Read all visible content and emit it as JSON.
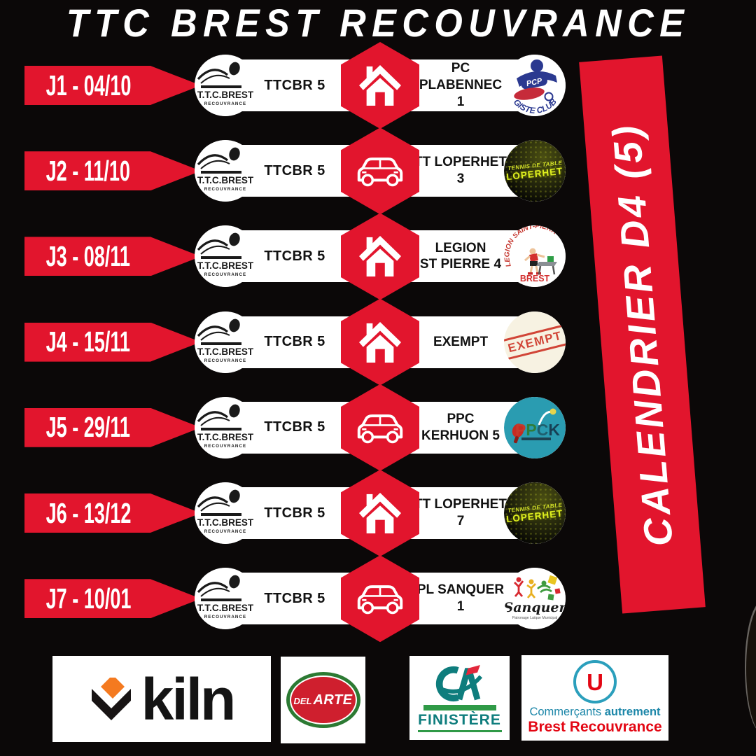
{
  "title": "TTC BREST RECOUVRANCE",
  "banner": {
    "label": "CALENDRIER D4 (5)"
  },
  "rows": [
    {
      "day": "J1 - 04/10",
      "venue": "home",
      "venue_icon": "house-icon",
      "team": "TTCBR 5",
      "opponent_lines": [
        "PC PLABENNEC 1"
      ],
      "opponent_logo": "pcp"
    },
    {
      "day": "J2 - 11/10",
      "venue": "away",
      "venue_icon": "car-icon",
      "team": "TTCBR 5",
      "opponent_lines": [
        "TT LOPERHET 3"
      ],
      "opponent_logo": "loperhet"
    },
    {
      "day": "J3 - 08/11",
      "venue": "home",
      "venue_icon": "house-icon",
      "team": "TTCBR 5",
      "opponent_lines": [
        "LEGION",
        "ST PIERRE 4"
      ],
      "opponent_logo": "legion"
    },
    {
      "day": "J4 - 15/11",
      "venue": "home",
      "venue_icon": "house-icon",
      "team": "TTCBR 5",
      "opponent_lines": [
        "EXEMPT"
      ],
      "opponent_logo": "exempt"
    },
    {
      "day": "J5 - 29/11",
      "venue": "away",
      "venue_icon": "car-icon",
      "team": "TTCBR 5",
      "opponent_lines": [
        "PPC KERHUON 5"
      ],
      "opponent_logo": "ppck"
    },
    {
      "day": "J6 - 13/12",
      "venue": "home",
      "venue_icon": "house-icon",
      "team": "TTCBR 5",
      "opponent_lines": [
        "TT LOPERHET 7"
      ],
      "opponent_logo": "loperhet"
    },
    {
      "day": "J7 - 10/01",
      "venue": "away",
      "venue_icon": "car-icon",
      "team": "TTCBR 5",
      "opponent_lines": [
        "PL SANQUER 1"
      ],
      "opponent_logo": "sanquer"
    }
  ],
  "logos": {
    "ttcbr": {
      "line1": "T.T.C.BREST",
      "line2": "RECOUVRANCE"
    },
    "pcp": {
      "badge": "PCP",
      "arc_text": "GISTE CLUB"
    },
    "loperhet": {
      "line1": "TENNIS DE TABLE",
      "line2": "LOPERHET"
    },
    "legion": {
      "arc_text": "LEGION SAINT-PIERRE",
      "bottom_text": "BREST"
    },
    "exempt": {
      "stamp_text": "EXEMPT"
    },
    "ppck": {
      "text": "PPCK"
    },
    "sanquer": {
      "text": "Sanquer",
      "subtext": "Patronage Laïque Municipal"
    }
  },
  "sponsors": {
    "kiln": {
      "label": "kiln"
    },
    "delarte": {
      "label_small": "DEL",
      "label_large": "ARTE"
    },
    "credit_agricole": {
      "label": "FINISTÈRE"
    },
    "super_u": {
      "letter": "U",
      "line1a": "Commerçants ",
      "line1b": "autrement",
      "line2": "Brest Recouvrance"
    }
  },
  "colors": {
    "background": "#0b0808",
    "accent_red": "#e2152d",
    "pill_white": "#ffffff",
    "text_black": "#141414",
    "loperhet_yellow": "#d6e428",
    "pcp_blue": "#2b3990",
    "ppck_teal": "#2a9cb1",
    "legion_red": "#c4332b",
    "exempt_red": "#cf3b2e",
    "kiln_orange": "#f47a20",
    "delarte_green": "#2c7a33",
    "delarte_red": "#cf1f2e",
    "ca_teal": "#0e7d7d",
    "ca_green": "#2f9a47",
    "ca_flag_red": "#e2273b",
    "u_teal": "#2b9fbc",
    "u_red": "#e30613"
  }
}
